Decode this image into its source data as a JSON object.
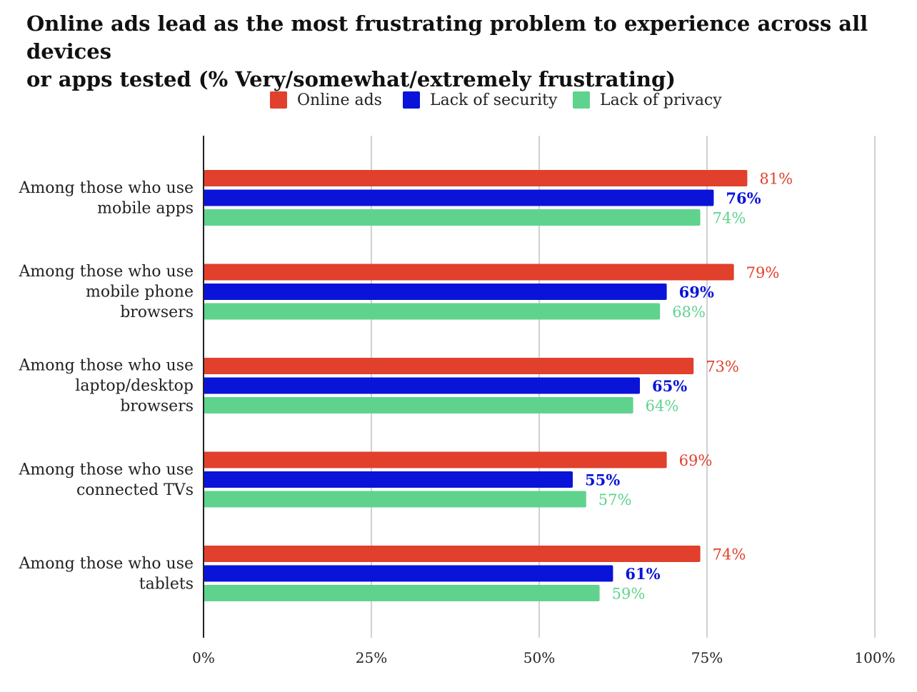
{
  "chart_data": {
    "type": "bar",
    "orientation": "horizontal",
    "title_lines": [
      "Online ads lead as the most frustrating problem to experience across all devices",
      "or apps tested (% Very/somewhat/extremely frustrating)"
    ],
    "categories": [
      [
        "Among those who use",
        "mobile apps"
      ],
      [
        "Among those who use",
        "mobile phone",
        "browsers"
      ],
      [
        "Among those who use",
        "laptop/desktop",
        "browsers"
      ],
      [
        "Among those who use",
        "connected TVs"
      ],
      [
        "Among those who use",
        "tablets"
      ]
    ],
    "series": [
      {
        "name": "Online ads",
        "color": "#e0402c",
        "values": [
          81,
          79,
          73,
          69,
          74
        ]
      },
      {
        "name": "Lack of security",
        "color": "#0a14d8",
        "values": [
          76,
          69,
          65,
          55,
          61
        ]
      },
      {
        "name": "Lack of privacy",
        "color": "#5fd38e",
        "values": [
          74,
          68,
          64,
          57,
          59
        ]
      }
    ],
    "value_suffix": "%",
    "xlim": [
      0,
      100
    ],
    "xticks": [
      0,
      25,
      50,
      75,
      100
    ],
    "xtick_labels": [
      "0%",
      "25%",
      "50%",
      "75%",
      "100%"
    ],
    "grid": "vertical",
    "legend_position": "top"
  }
}
